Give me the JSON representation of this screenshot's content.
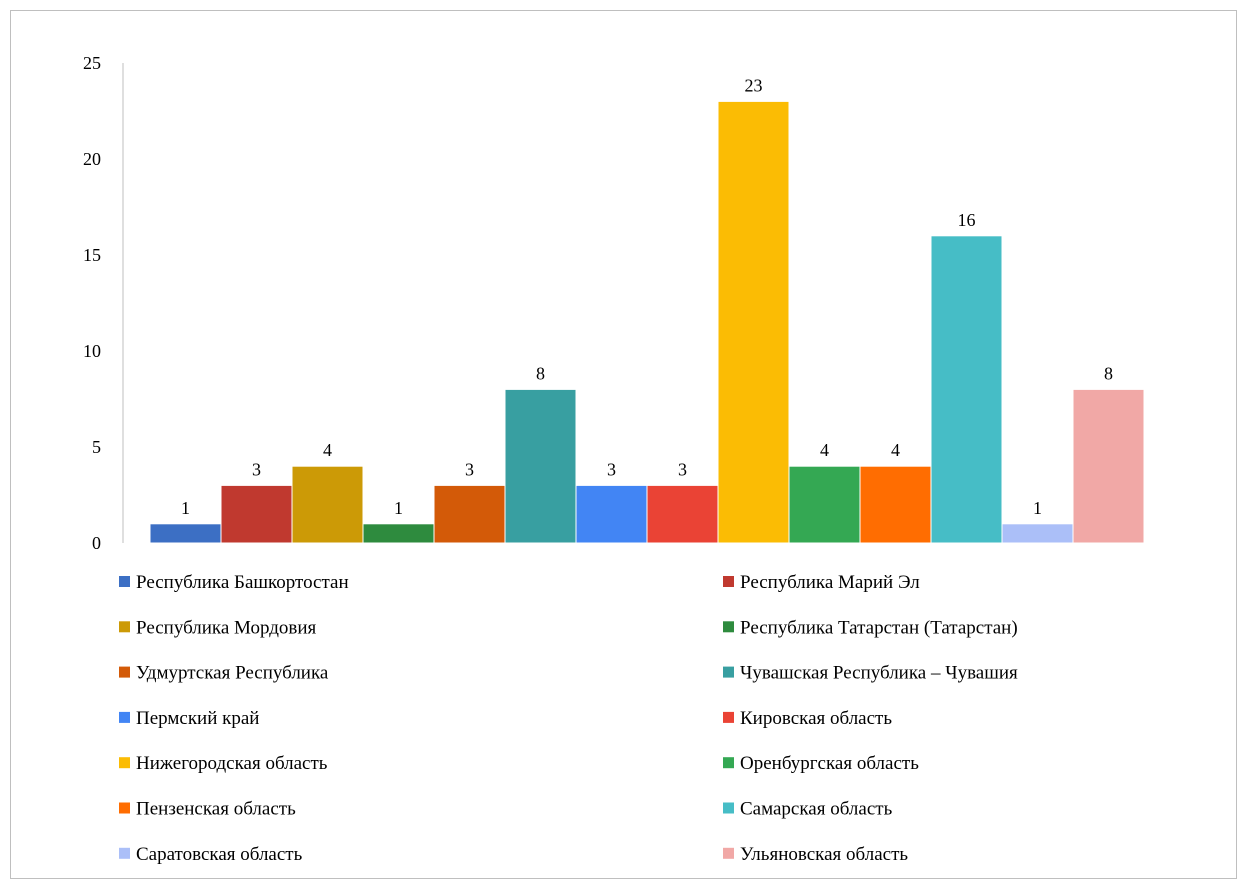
{
  "chart_data": {
    "type": "bar",
    "ylim": [
      0,
      25
    ],
    "yticks": [
      0,
      5,
      10,
      15,
      20,
      25
    ],
    "grid": false,
    "legend_position": "bottom",
    "series": [
      {
        "name": "Республика Башкортостан",
        "value": 1,
        "color": "#3C6FC4"
      },
      {
        "name": "Республика Марий Эл",
        "value": 3,
        "color": "#C0392F"
      },
      {
        "name": "Республика Мордовия",
        "value": 4,
        "color": "#CC9A06"
      },
      {
        "name": "Республика Татарстан (Татарстан)",
        "value": 1,
        "color": "#2E8B3E"
      },
      {
        "name": "Удмуртская Республика",
        "value": 3,
        "color": "#D35A08"
      },
      {
        "name": "Чувашская Республика – Чувашия",
        "value": 8,
        "color": "#389FA1"
      },
      {
        "name": "Пермский край",
        "value": 3,
        "color": "#4285F4"
      },
      {
        "name": "Кировская область",
        "value": 3,
        "color": "#EA4335"
      },
      {
        "name": "Нижегородская область",
        "value": 23,
        "color": "#FBBC04"
      },
      {
        "name": "Оренбургская область",
        "value": 4,
        "color": "#34A853"
      },
      {
        "name": "Пензенская область",
        "value": 4,
        "color": "#FF6D01"
      },
      {
        "name": "Самарская область",
        "value": 16,
        "color": "#46BDC6"
      },
      {
        "name": "Саратовская область",
        "value": 1,
        "color": "#ABBFF8"
      },
      {
        "name": "Ульяновская область",
        "value": 8,
        "color": "#F1A8A6"
      }
    ]
  }
}
